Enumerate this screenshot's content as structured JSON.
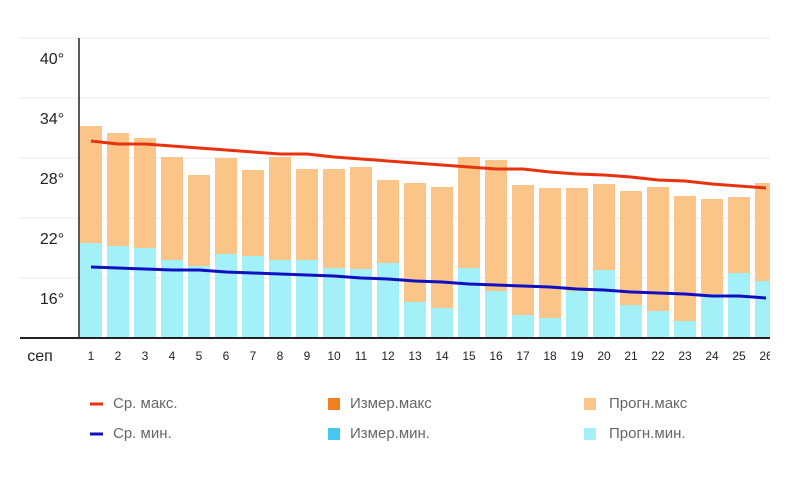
{
  "chart_data": {
    "type": "bar",
    "xlabel": "сеп",
    "categories": [
      "1",
      "2",
      "3",
      "4",
      "5",
      "6",
      "7",
      "8",
      "9",
      "10",
      "11",
      "12",
      "13",
      "14",
      "15",
      "16",
      "17",
      "18",
      "19",
      "20",
      "21",
      "22",
      "23",
      "24",
      "25",
      "26"
    ],
    "ylim": [
      10,
      40
    ],
    "yticks": [
      {
        "value": 16,
        "label": "16°"
      },
      {
        "value": 22,
        "label": "22°"
      },
      {
        "value": 28,
        "label": "28°"
      },
      {
        "value": 34,
        "label": "34°"
      },
      {
        "value": 40,
        "label": "40°"
      }
    ],
    "grid": true,
    "series": [
      {
        "name": "Ср. макс.",
        "kind": "line",
        "color": "#e8320e",
        "values": [
          29.7,
          29.4,
          29.4,
          29.2,
          29,
          28.8,
          28.6,
          28.4,
          28.4,
          28.1,
          27.9,
          27.7,
          27.5,
          27.3,
          27.1,
          26.9,
          26.9,
          26.6,
          26.4,
          26.3,
          26.1,
          25.8,
          25.7,
          25.4,
          25.2,
          25
        ]
      },
      {
        "name": "Измер.макс",
        "kind": "bar",
        "color": "#f07f1e",
        "values": [
          null,
          null,
          null,
          null,
          null,
          null,
          null,
          null,
          null,
          null,
          null,
          null,
          null,
          null,
          null,
          null,
          null,
          null,
          null,
          null,
          null,
          null,
          null,
          null,
          null,
          null
        ]
      },
      {
        "name": "Прогн.макс",
        "kind": "bar",
        "color": "#fbc58a",
        "values": [
          31.2,
          30.5,
          30,
          28.1,
          26.3,
          28,
          26.8,
          28.1,
          26.9,
          26.9,
          27.1,
          25.8,
          25.5,
          25.1,
          28.1,
          27.8,
          25.3,
          25,
          25,
          25.4,
          24.7,
          25.1,
          24.2,
          23.9,
          24.1,
          25.5
        ]
      },
      {
        "name": "Ср. мин.",
        "kind": "line",
        "color": "#1010c0",
        "values": [
          17.1,
          17,
          16.9,
          16.8,
          16.8,
          16.6,
          16.5,
          16.4,
          16.3,
          16.2,
          16,
          15.9,
          15.7,
          15.6,
          15.4,
          15.3,
          15.2,
          15.1,
          14.9,
          14.8,
          14.6,
          14.5,
          14.4,
          14.2,
          14.2,
          14
        ]
      },
      {
        "name": "Измер.мин.",
        "kind": "bar",
        "color": "#48c8ef",
        "values": [
          null,
          null,
          null,
          null,
          null,
          null,
          null,
          null,
          null,
          null,
          null,
          null,
          null,
          null,
          null,
          null,
          null,
          null,
          null,
          null,
          null,
          null,
          null,
          null,
          null,
          null
        ]
      },
      {
        "name": "Прогн.мин.",
        "kind": "bar",
        "color": "#a4f0f8",
        "values": [
          19.5,
          19.2,
          19,
          17.8,
          17.2,
          18.4,
          18.2,
          17.8,
          17.8,
          17,
          16.9,
          17.5,
          13.6,
          13,
          17,
          14.7,
          12.3,
          12,
          14.7,
          16.8,
          13.3,
          12.7,
          11.7,
          14.4,
          16.5,
          15.7
        ]
      }
    ]
  }
}
